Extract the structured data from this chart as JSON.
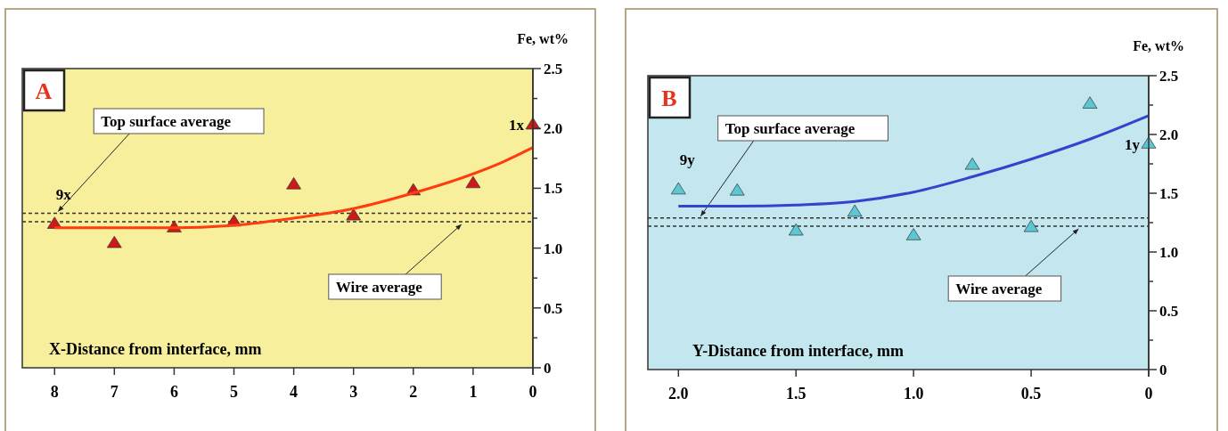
{
  "chart_data": [
    {
      "type": "scatter",
      "title": "A",
      "xlabel": "X-Distance from interface, mm",
      "ylabel": "Fe, wt%",
      "xlim": [
        8.54,
        0
      ],
      "xticks": [
        8,
        7,
        6,
        5,
        4,
        3,
        2,
        1,
        0
      ],
      "ylim": [
        0,
        2.5
      ],
      "yticks": [
        0,
        {
          "value": 0.25,
          "label": null
        },
        0.5,
        {
          "value": 0.75,
          "label": null
        },
        {
          "value": 1,
          "label": "1.0"
        },
        {
          "value": 1.25,
          "label": null
        },
        1.5,
        {
          "value": 1.75,
          "label": null
        },
        {
          "value": 2,
          "label": "2.0"
        },
        {
          "value": 2.25,
          "label": null
        },
        2.5
      ],
      "grid": false,
      "series": [
        {
          "color": "#cc1a1a",
          "marker": "triangle",
          "x": [
            8,
            7,
            6,
            5,
            4,
            3,
            2,
            1,
            0
          ],
          "values": [
            1.2,
            1.04,
            1.17,
            1.22,
            1.53,
            1.27,
            1.48,
            1.54,
            2.03
          ]
        },
        {
          "type": "line",
          "color": "#ff3b10",
          "line_style": "solid",
          "x": [
            8,
            7,
            6,
            5,
            4,
            3,
            2,
            1,
            0.5,
            0
          ],
          "values": [
            1.17,
            1.17,
            1.17,
            1.19,
            1.25,
            1.33,
            1.46,
            1.62,
            1.72,
            1.84
          ]
        }
      ],
      "ref_lines": [
        {
          "axis": "y",
          "value": 1.29,
          "label": "Top surface average",
          "line_style": "dashed",
          "color": "#333333"
        },
        {
          "axis": "y",
          "value": 1.22,
          "label": "Wire average",
          "line_style": "dashed",
          "color": "#333333"
        }
      ],
      "annotations": [
        {
          "text": "9x",
          "x": 8,
          "y": 1.2
        },
        {
          "text": "1x",
          "x": 0,
          "y": 2.03
        }
      ]
    },
    {
      "type": "scatter",
      "title": "B",
      "xlabel": "Y-Distance from interface, mm",
      "ylabel": "Fe, wt%",
      "xlim": [
        2.13,
        0
      ],
      "xticks": [
        {
          "value": 2,
          "label": "2.0"
        },
        1.5,
        {
          "value": 1,
          "label": "1.0"
        },
        0.5,
        0
      ],
      "ylim": [
        0,
        2.5
      ],
      "yticks": [
        0,
        {
          "value": 0.25,
          "label": null
        },
        0.5,
        {
          "value": 0.75,
          "label": null
        },
        {
          "value": 1,
          "label": "1.0"
        },
        {
          "value": 1.25,
          "label": null
        },
        1.5,
        {
          "value": 1.75,
          "label": null
        },
        {
          "value": 2,
          "label": "2.0"
        },
        {
          "value": 2.25,
          "label": null
        },
        2.5
      ],
      "grid": false,
      "series": [
        {
          "color": "#5cc6d2",
          "marker": "triangle",
          "x": [
            2,
            1.75,
            1.5,
            1.25,
            1,
            0.75,
            0.5,
            0.25,
            0
          ],
          "values": [
            1.53,
            1.52,
            1.18,
            1.34,
            1.14,
            1.74,
            1.21,
            2.26,
            1.92
          ]
        },
        {
          "type": "line",
          "color": "#3344cc",
          "line_style": "solid",
          "x": [
            2,
            1.75,
            1.5,
            1.25,
            1,
            0.75,
            0.5,
            0.25,
            0
          ],
          "values": [
            1.39,
            1.39,
            1.4,
            1.43,
            1.51,
            1.64,
            1.79,
            1.96,
            2.16
          ]
        }
      ],
      "ref_lines": [
        {
          "axis": "y",
          "value": 1.29,
          "label": "Top surface average",
          "line_style": "dashed",
          "color": "#333333"
        },
        {
          "axis": "y",
          "value": 1.22,
          "label": "Wire average",
          "line_style": "dashed",
          "color": "#333333"
        }
      ],
      "annotations": [
        {
          "text": "9y",
          "x": 2,
          "y": 1.53
        },
        {
          "text": "1y",
          "x": 0,
          "y": 1.92
        }
      ]
    }
  ]
}
